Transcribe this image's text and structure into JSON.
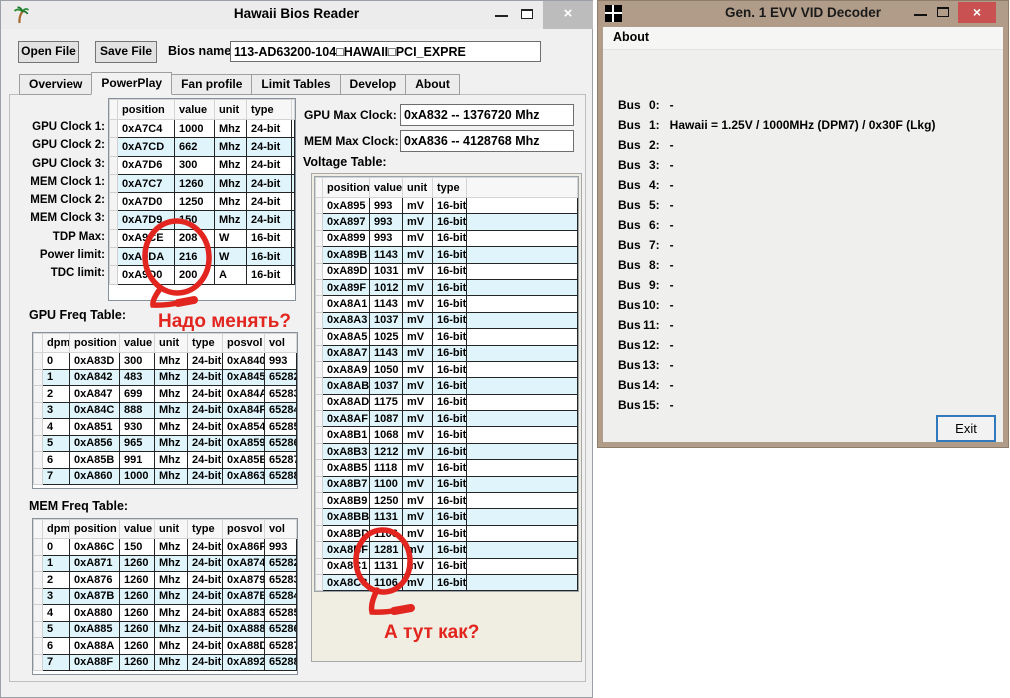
{
  "hawaii_window": {
    "title": "Hawaii Bios Reader",
    "close_glyph": "×",
    "toolbar": {
      "open_button": "Open File",
      "save_button": "Save File",
      "bios_name_label": "Bios name",
      "bios_name_value": "113-AD63200-104□HAWAII□PCI_EXPRE"
    },
    "tabs": [
      "Overview",
      "PowerPlay",
      "Fan profile",
      "Limit Tables",
      "Develop",
      "About"
    ],
    "active_tab": "PowerPlay",
    "clock_labels": [
      "GPU Clock 1:",
      "GPU Clock 2:",
      "GPU Clock 3:",
      "MEM Clock 1:",
      "MEM Clock 2:",
      "MEM Clock 3:",
      "TDP Max:",
      "Power limit:",
      "TDC limit:"
    ],
    "clock_table": {
      "headers": [
        "position",
        "value",
        "unit",
        "type"
      ],
      "rows": [
        [
          "0xA7C4",
          "1000",
          "Mhz",
          "24-bit"
        ],
        [
          "0xA7CD",
          "662",
          "Mhz",
          "24-bit"
        ],
        [
          "0xA7D6",
          "300",
          "Mhz",
          "24-bit"
        ],
        [
          "0xA7C7",
          "1260",
          "Mhz",
          "24-bit"
        ],
        [
          "0xA7D0",
          "1250",
          "Mhz",
          "24-bit"
        ],
        [
          "0xA7D9",
          "150",
          "Mhz",
          "24-bit"
        ],
        [
          "0xA9CE",
          "208",
          "W",
          "16-bit"
        ],
        [
          "0xA9DA",
          "216",
          "W",
          "16-bit"
        ],
        [
          "0xA9D0",
          "200",
          "A",
          "16-bit"
        ]
      ]
    },
    "max_clocks": {
      "gpu_label": "GPU Max Clock:",
      "gpu_value": "0xA832 -- 1376720 Mhz",
      "mem_label": "MEM Max Clock:",
      "mem_value": "0xA836 -- 4128768 Mhz"
    },
    "voltage_table": {
      "title": "Voltage Table:",
      "headers": [
        "position",
        "value",
        "unit",
        "type"
      ],
      "rows": [
        [
          "0xA895",
          "993",
          "mV",
          "16-bit"
        ],
        [
          "0xA897",
          "993",
          "mV",
          "16-bit"
        ],
        [
          "0xA899",
          "993",
          "mV",
          "16-bit"
        ],
        [
          "0xA89B",
          "1143",
          "mV",
          "16-bit"
        ],
        [
          "0xA89D",
          "1031",
          "mV",
          "16-bit"
        ],
        [
          "0xA89F",
          "1012",
          "mV",
          "16-bit"
        ],
        [
          "0xA8A1",
          "1143",
          "mV",
          "16-bit"
        ],
        [
          "0xA8A3",
          "1037",
          "mV",
          "16-bit"
        ],
        [
          "0xA8A5",
          "1025",
          "mV",
          "16-bit"
        ],
        [
          "0xA8A7",
          "1143",
          "mV",
          "16-bit"
        ],
        [
          "0xA8A9",
          "1050",
          "mV",
          "16-bit"
        ],
        [
          "0xA8AB",
          "1037",
          "mV",
          "16-bit"
        ],
        [
          "0xA8AD",
          "1175",
          "mV",
          "16-bit"
        ],
        [
          "0xA8AF",
          "1087",
          "mV",
          "16-bit"
        ],
        [
          "0xA8B1",
          "1068",
          "mV",
          "16-bit"
        ],
        [
          "0xA8B3",
          "1212",
          "mV",
          "16-bit"
        ],
        [
          "0xA8B5",
          "1118",
          "mV",
          "16-bit"
        ],
        [
          "0xA8B7",
          "1100",
          "mV",
          "16-bit"
        ],
        [
          "0xA8B9",
          "1250",
          "mV",
          "16-bit"
        ],
        [
          "0xA8BB",
          "1131",
          "mV",
          "16-bit"
        ],
        [
          "0xA8BD",
          "1106",
          "mV",
          "16-bit"
        ],
        [
          "0xA8BF",
          "1281",
          "mV",
          "16-bit"
        ],
        [
          "0xA8C1",
          "1131",
          "mV",
          "16-bit"
        ],
        [
          "0xA8C3",
          "1106",
          "mV",
          "16-bit"
        ]
      ]
    },
    "gpu_freq_table": {
      "title": "GPU Freq Table:",
      "headers": [
        "dpm",
        "position",
        "value",
        "unit",
        "type",
        "posvol",
        "vol"
      ],
      "rows": [
        [
          "0",
          "0xA83D",
          "300",
          "Mhz",
          "24-bit",
          "0xA840",
          "993"
        ],
        [
          "1",
          "0xA842",
          "483",
          "Mhz",
          "24-bit",
          "0xA845",
          "65282"
        ],
        [
          "2",
          "0xA847",
          "699",
          "Mhz",
          "24-bit",
          "0xA84A",
          "65283"
        ],
        [
          "3",
          "0xA84C",
          "888",
          "Mhz",
          "24-bit",
          "0xA84F",
          "65284"
        ],
        [
          "4",
          "0xA851",
          "930",
          "Mhz",
          "24-bit",
          "0xA854",
          "65285"
        ],
        [
          "5",
          "0xA856",
          "965",
          "Mhz",
          "24-bit",
          "0xA859",
          "65286"
        ],
        [
          "6",
          "0xA85B",
          "991",
          "Mhz",
          "24-bit",
          "0xA85E",
          "65287"
        ],
        [
          "7",
          "0xA860",
          "1000",
          "Mhz",
          "24-bit",
          "0xA863",
          "65288"
        ]
      ]
    },
    "mem_freq_table": {
      "title": "MEM Freq Table:",
      "headers": [
        "dpm",
        "position",
        "value",
        "unit",
        "type",
        "posvol",
        "vol"
      ],
      "rows": [
        [
          "0",
          "0xA86C",
          "150",
          "Mhz",
          "24-bit",
          "0xA86F",
          "993"
        ],
        [
          "1",
          "0xA871",
          "1260",
          "Mhz",
          "24-bit",
          "0xA874",
          "65282"
        ],
        [
          "2",
          "0xA876",
          "1260",
          "Mhz",
          "24-bit",
          "0xA879",
          "65283"
        ],
        [
          "3",
          "0xA87B",
          "1260",
          "Mhz",
          "24-bit",
          "0xA87E",
          "65284"
        ],
        [
          "4",
          "0xA880",
          "1260",
          "Mhz",
          "24-bit",
          "0xA883",
          "65285"
        ],
        [
          "5",
          "0xA885",
          "1260",
          "Mhz",
          "24-bit",
          "0xA888",
          "65286"
        ],
        [
          "6",
          "0xA88A",
          "1260",
          "Mhz",
          "24-bit",
          "0xA88D",
          "65287"
        ],
        [
          "7",
          "0xA88F",
          "1260",
          "Mhz",
          "24-bit",
          "0xA892",
          "65288"
        ]
      ]
    },
    "annotations": {
      "color": "#e2261f",
      "question1": "Надо менять?",
      "question2": "А тут как?"
    }
  },
  "decoder_window": {
    "title": "Gen. 1 EVV VID Decoder",
    "close_glyph": "×",
    "menu": {
      "about": "About"
    },
    "bus_word": "Bus",
    "bus_rows": [
      {
        "num": "0",
        "value": "-"
      },
      {
        "num": "1",
        "value": "Hawaii = 1.25V / 1000MHz (DPM7) / 0x30F (Lkg)"
      },
      {
        "num": "2",
        "value": "-"
      },
      {
        "num": "3",
        "value": "-"
      },
      {
        "num": "4",
        "value": "-"
      },
      {
        "num": "5",
        "value": "-"
      },
      {
        "num": "6",
        "value": "-"
      },
      {
        "num": "7",
        "value": "-"
      },
      {
        "num": "8",
        "value": "-"
      },
      {
        "num": "9",
        "value": "-"
      },
      {
        "num": "10",
        "value": "-"
      },
      {
        "num": "11",
        "value": "-"
      },
      {
        "num": "12",
        "value": "-"
      },
      {
        "num": "13",
        "value": "-"
      },
      {
        "num": "14",
        "value": "-"
      },
      {
        "num": "15",
        "value": "-"
      }
    ],
    "exit_button": "Exit"
  }
}
